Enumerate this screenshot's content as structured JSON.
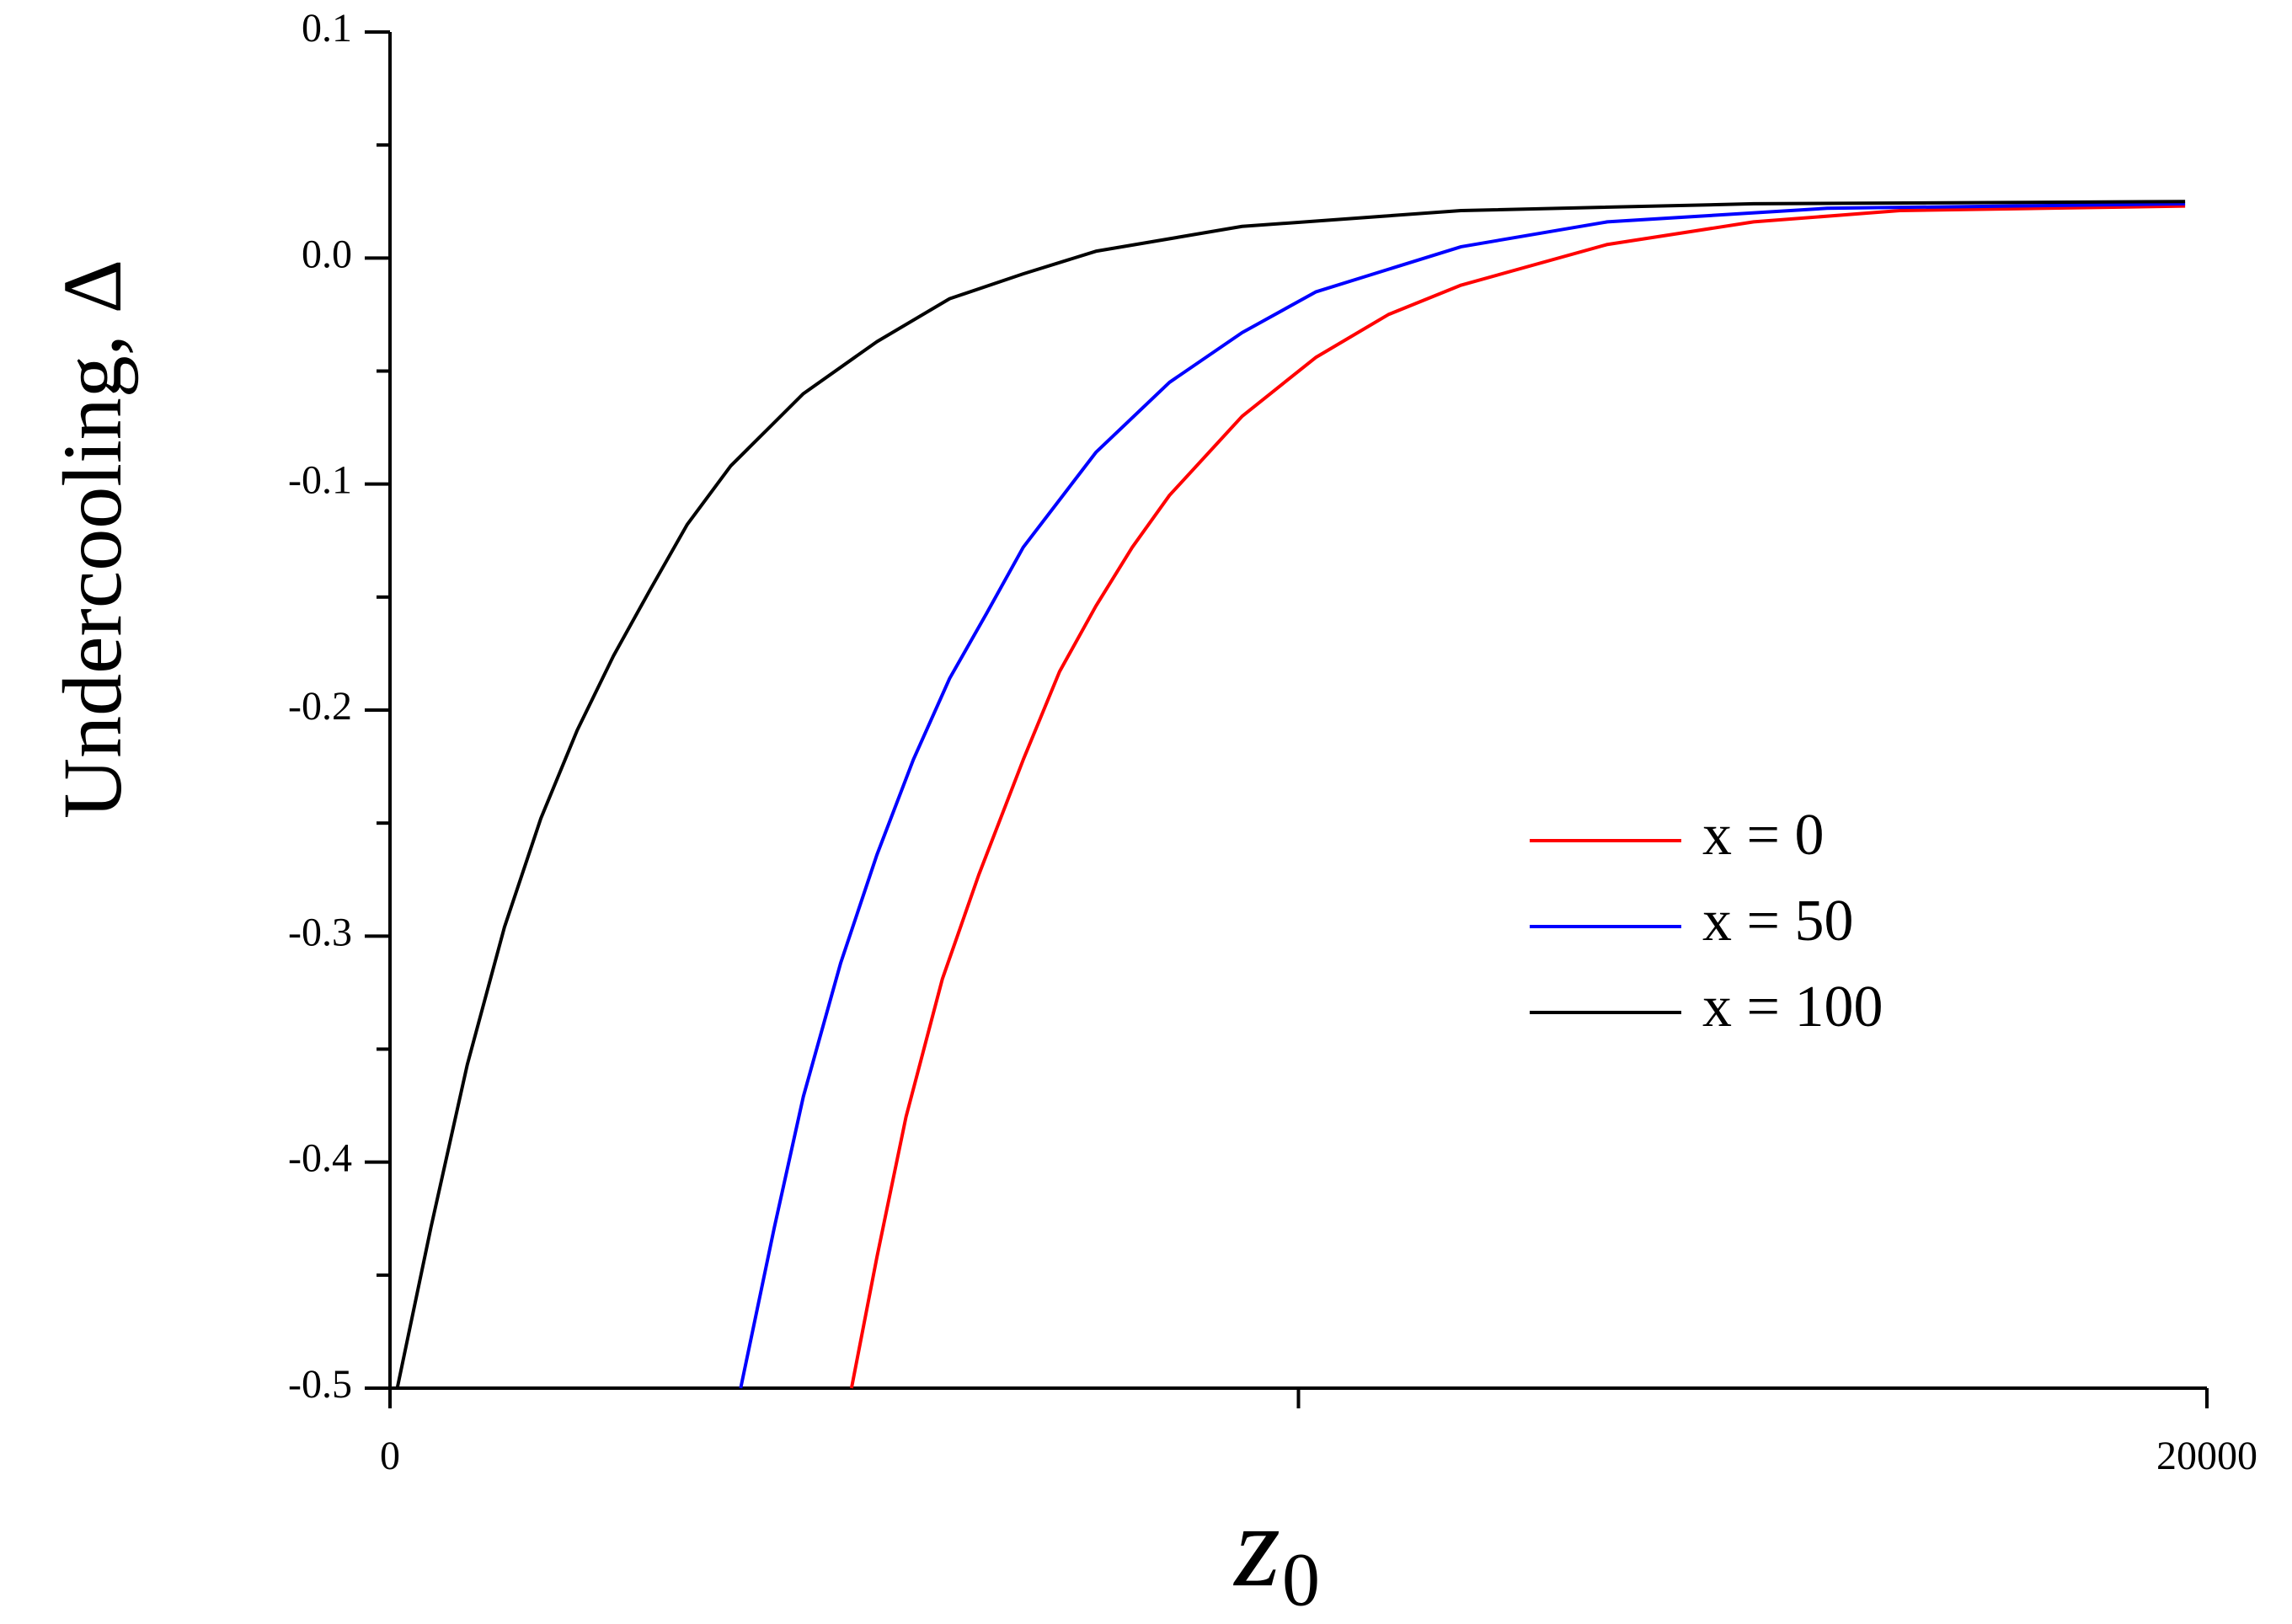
{
  "chart_data": {
    "type": "line",
    "xlabel": "z",
    "xlabel_subscript": "0",
    "ylabel": "Undercooling, Δ",
    "xlim": [
      0,
      20000
    ],
    "xticks": [
      0,
      20000
    ],
    "xminorticks": [
      10000
    ],
    "ylim": [
      -0.5,
      0.1
    ],
    "yticks": [
      0.1,
      {
        "value": 0,
        "label": "0.0"
      },
      -0.1,
      -0.2,
      -0.3,
      -0.4,
      -0.5
    ],
    "yminorticks": [
      0.05,
      -0.05,
      -0.15,
      -0.25,
      -0.35,
      -0.45
    ],
    "legend": "right",
    "series": [
      {
        "name": "x = 0",
        "color": "#ff0000",
        "x": [
          5080,
          5360,
          5680,
          6080,
          6480,
          6970,
          7370,
          7770,
          8170,
          8580,
          9380,
          10190,
          10990,
          11790,
          13400,
          15010,
          16620,
          19760
        ],
        "values": [
          -0.5,
          -0.442,
          -0.38,
          -0.319,
          -0.273,
          -0.222,
          -0.183,
          -0.154,
          -0.128,
          -0.105,
          -0.07,
          -0.044,
          -0.025,
          -0.012,
          0.006,
          0.016,
          0.021,
          0.023
        ]
      },
      {
        "name": "x = 50",
        "color": "#0000ff",
        "x": [
          3860,
          4230,
          4550,
          4960,
          5360,
          5760,
          6160,
          6570,
          6970,
          7770,
          8580,
          9380,
          10190,
          11790,
          13400,
          15820,
          19760
        ],
        "values": [
          -0.5,
          -0.429,
          -0.371,
          -0.312,
          -0.264,
          -0.222,
          -0.186,
          -0.157,
          -0.128,
          -0.086,
          -0.055,
          -0.033,
          -0.015,
          0.005,
          0.016,
          0.022,
          0.024
        ]
      },
      {
        "name": "x = 100",
        "color": "#000000",
        "x": [
          80,
          450,
          850,
          1260,
          1660,
          2060,
          2460,
          2860,
          3270,
          3750,
          4550,
          5360,
          6160,
          6970,
          7770,
          9380,
          11790,
          15010,
          19760
        ],
        "values": [
          -0.5,
          -0.429,
          -0.357,
          -0.296,
          -0.248,
          -0.209,
          -0.176,
          -0.147,
          -0.118,
          -0.092,
          -0.06,
          -0.037,
          -0.018,
          -0.007,
          0.003,
          0.014,
          0.021,
          0.024,
          0.025
        ]
      }
    ]
  }
}
